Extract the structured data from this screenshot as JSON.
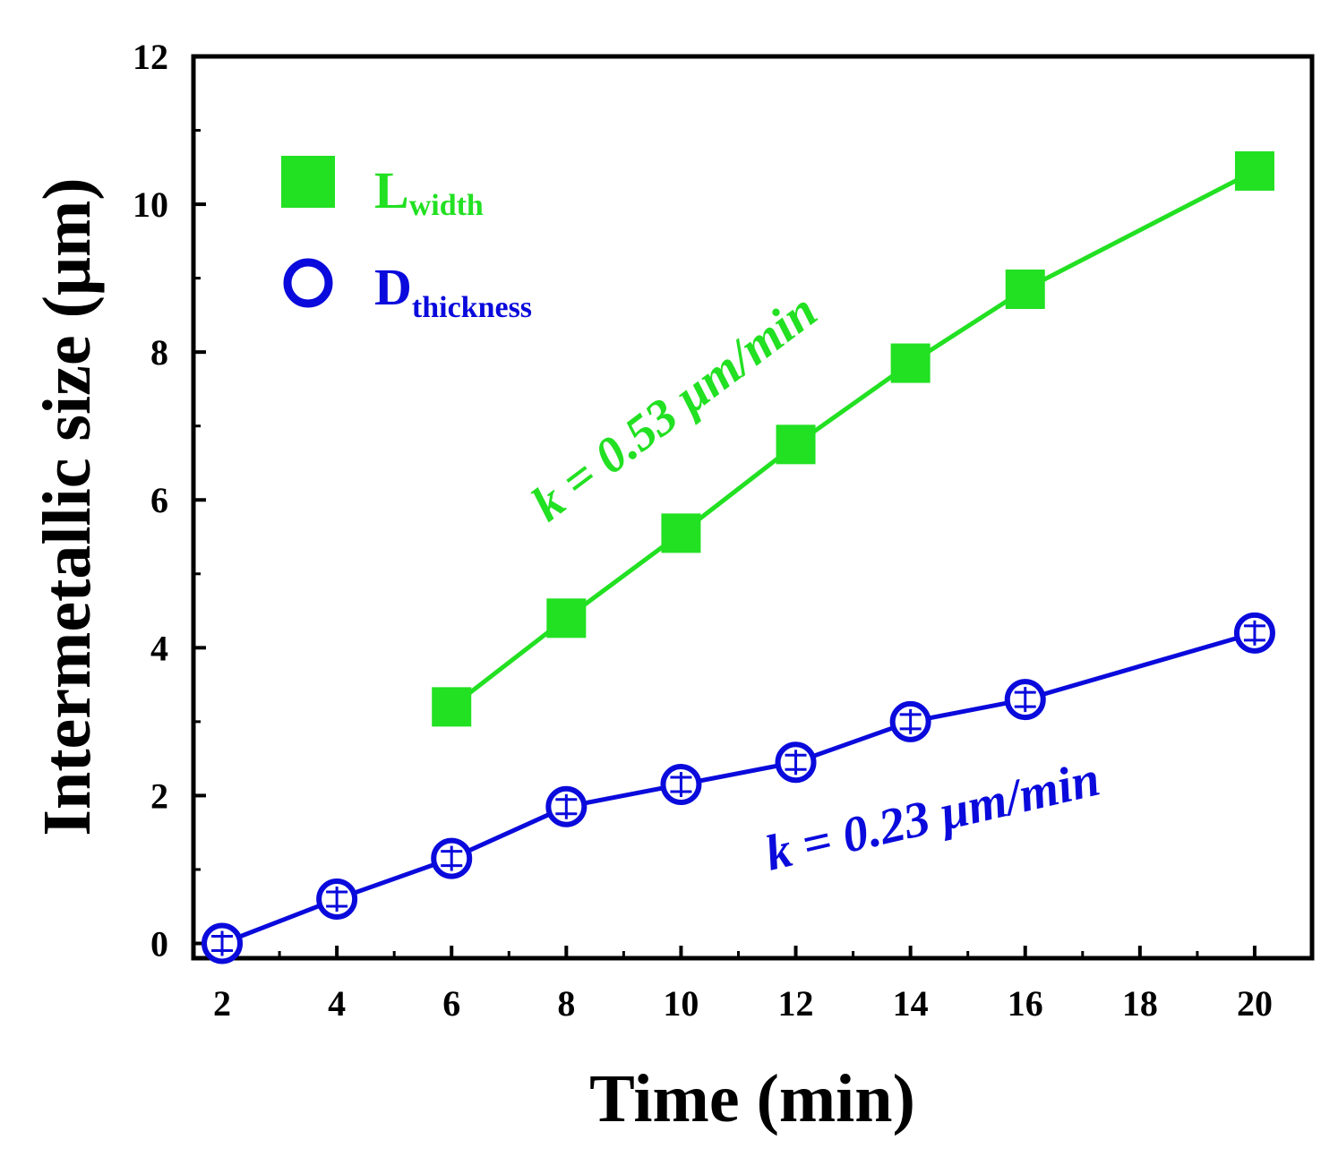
{
  "chart_data": {
    "type": "line",
    "title": "",
    "xlabel": "Time (min)",
    "ylabel": "Intermetallic size (μm)",
    "xlim": [
      1.5,
      21
    ],
    "ylim": [
      -0.2,
      12
    ],
    "xticks": [
      2,
      4,
      6,
      8,
      10,
      12,
      14,
      16,
      18,
      20
    ],
    "yticks": [
      0,
      2,
      4,
      6,
      8,
      10,
      12
    ],
    "grid": false,
    "legend_position": "top-left",
    "series": [
      {
        "name": "L",
        "subscript": "width",
        "marker": "filled-square",
        "color": "#22e022",
        "x": [
          6,
          8,
          10,
          12,
          14,
          16,
          20
        ],
        "y": [
          3.2,
          4.4,
          5.55,
          6.75,
          7.85,
          8.85,
          10.45
        ]
      },
      {
        "name": "D",
        "subscript": "thickness",
        "marker": "open-circle",
        "color": "#0a0adc",
        "x": [
          2,
          4,
          6,
          8,
          10,
          12,
          14,
          16,
          20
        ],
        "y": [
          0.0,
          0.6,
          1.15,
          1.85,
          2.15,
          2.45,
          3.0,
          3.3,
          4.2
        ]
      }
    ],
    "annotations": [
      {
        "prefix": "k",
        "text": " = 0.53 μm/min",
        "color": "#22e022",
        "series": "L"
      },
      {
        "prefix": "k",
        "text": " = 0.23 μm/min",
        "color": "#0a0adc",
        "series": "D"
      }
    ]
  }
}
